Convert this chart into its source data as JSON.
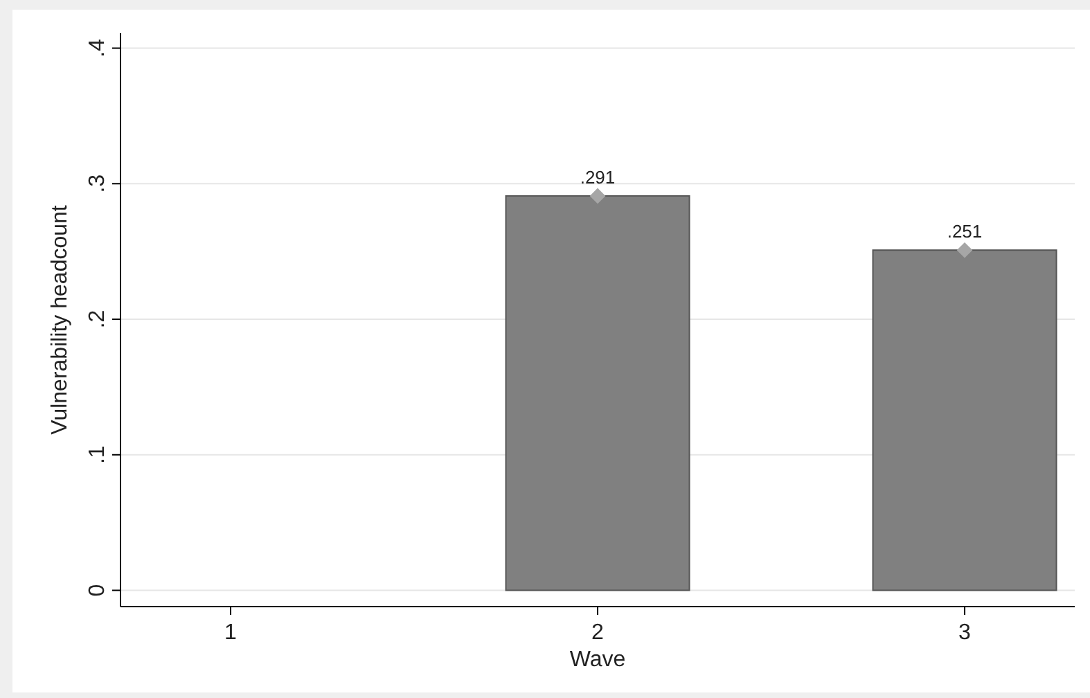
{
  "chart_data": {
    "type": "bar",
    "xlabel": "Wave",
    "ylabel": "Vulnerability headcount",
    "x": [
      2,
      3
    ],
    "xlim": [
      0.7,
      3.3
    ],
    "xticks": [
      1,
      2,
      3
    ],
    "ylim": [
      -0.012,
      0.411
    ],
    "yticks": [
      {
        "value": 0,
        "label": "0"
      },
      {
        "value": 0.1,
        "label": ".1"
      },
      {
        "value": 0.2,
        "label": ".2"
      },
      {
        "value": 0.3,
        "label": ".3"
      },
      {
        "value": 0.4,
        "label": ".4"
      }
    ],
    "grid": "y",
    "series": [
      {
        "color": "#808080",
        "values": [
          0.291,
          0.251
        ]
      },
      {
        "type": "scatter",
        "color": "#a6a6a6",
        "marker": "diamond",
        "values": [
          0.291,
          0.251
        ],
        "value_labels": [
          ".291",
          ".251"
        ]
      }
    ]
  }
}
